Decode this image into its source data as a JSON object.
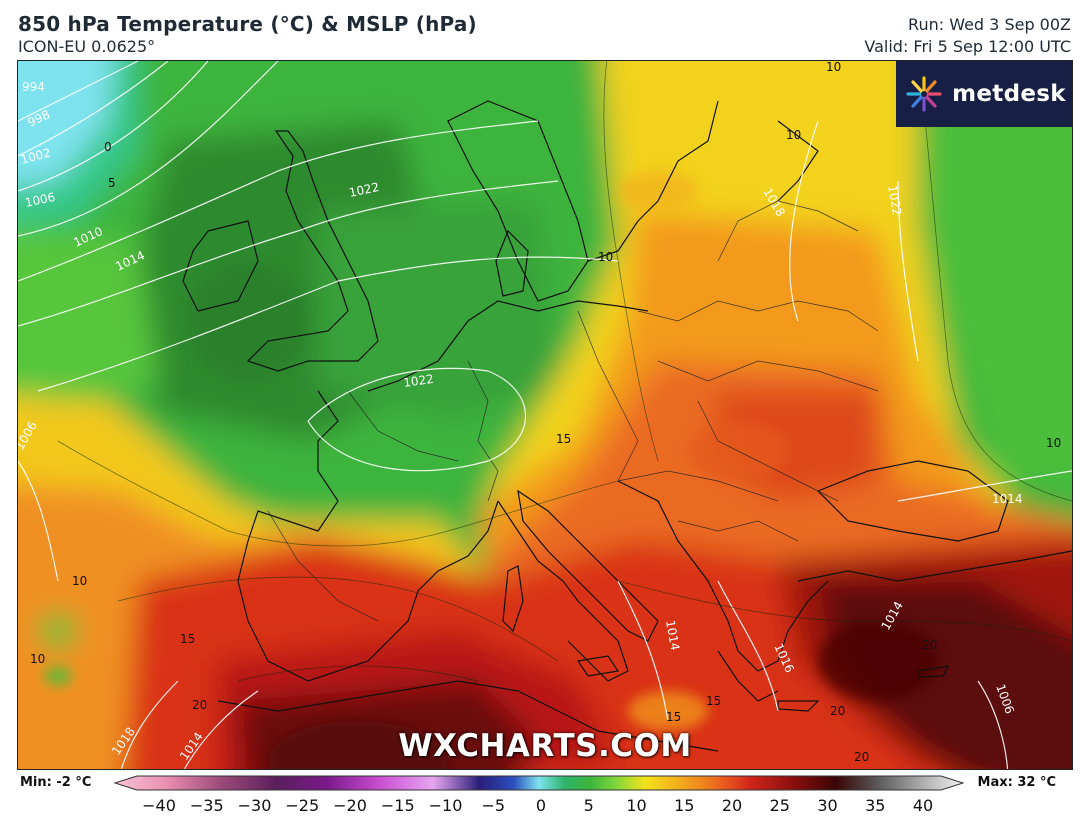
{
  "header": {
    "title": "850 hPa Temperature (°C) & MSLP (hPa)",
    "model": "ICON-EU 0.0625°",
    "run": "Run: Wed 3 Sep 00Z",
    "valid": "Valid: Fri 5 Sep 12:00 UTC"
  },
  "brand": {
    "name": "metdesk",
    "icon": "metdesk-starburst-icon"
  },
  "watermark": "WXCHARTS.COM",
  "legend": {
    "min_label": "Min: -2 °C",
    "max_label": "Max: 32 °C",
    "ticks": [
      "−40",
      "−35",
      "−30",
      "−25",
      "−20",
      "−15",
      "−10",
      "−5",
      "0",
      "5",
      "10",
      "15",
      "20",
      "25",
      "30",
      "35",
      "40"
    ]
  },
  "map_labels": {
    "isobars": [
      "994",
      "998",
      "1002",
      "1006",
      "1010",
      "1014",
      "1022",
      "1006",
      "1018",
      "1014",
      "1018",
      "1014",
      "1014",
      "1016",
      "1006",
      "1014",
      "1022",
      "1018",
      "1010"
    ],
    "isotherms": [
      "0",
      "5",
      "10",
      "10",
      "10",
      "15",
      "10",
      "15",
      "20",
      "20",
      "15",
      "15",
      "20",
      "20",
      "10",
      "10",
      "5"
    ]
  },
  "colors": {
    "cold_cyan": "#7fe3ef",
    "green_dark": "#2f8a2f",
    "green": "#3cb43c",
    "green_light": "#5ccc3c",
    "yellow": "#f2e21a",
    "orange": "#f39a1c",
    "red_orange": "#e9581e",
    "red": "#cf2418",
    "dark_red": "#7a0d0d",
    "brand_bg": "#172044"
  }
}
